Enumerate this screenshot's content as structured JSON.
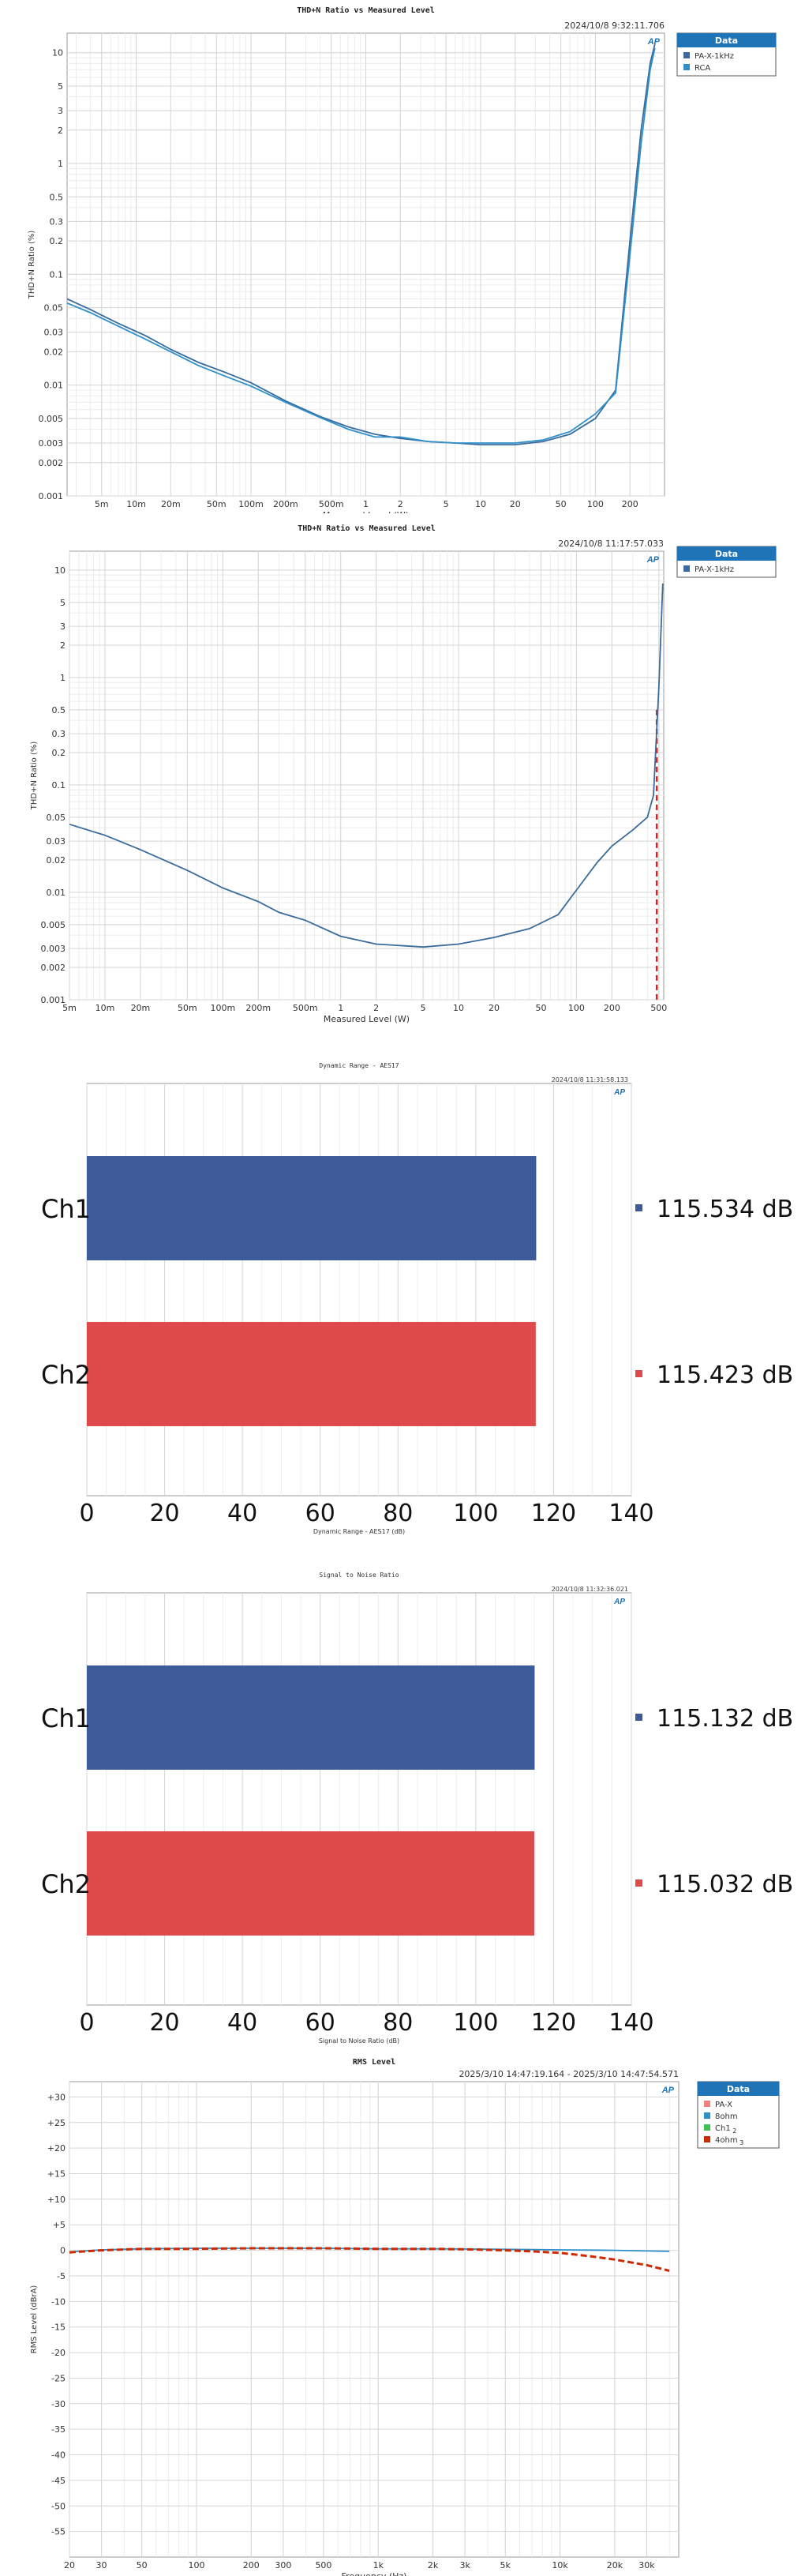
{
  "colors": {
    "series_dark_blue": "#3a6b9c",
    "series_light_blue": "#2e8fc9",
    "cursor_red": "#e02020",
    "bar_blue": "#3d5a99",
    "bar_red": "#de4a4a",
    "grid": "#e3e3e3",
    "legend_header": "#1f73b7",
    "rms_red": "#cc2a00",
    "rms_blue": "#2e8fc9",
    "rms_pink": "#f08080",
    "rms_green": "#3cc35a"
  },
  "chart_data": [
    {
      "type": "line",
      "title": "THD+N Ratio vs Measured Level",
      "timestamp": "2024/10/8 9:32:11.706",
      "xlabel": "Measured Level (W)",
      "ylabel": "THD+N Ratio (%)",
      "xscale": "log",
      "yscale": "log",
      "xlim": [
        0.0025,
        400
      ],
      "ylim": [
        0.001,
        15
      ],
      "x_ticks": [
        0.005,
        0.01,
        0.02,
        0.05,
        0.1,
        0.2,
        0.5,
        1,
        2,
        5,
        10,
        20,
        50,
        100,
        200
      ],
      "x_tick_labels": [
        "5m",
        "10m",
        "20m",
        "50m",
        "100m",
        "200m",
        "500m",
        "1",
        "2",
        "5",
        "10",
        "20",
        "50",
        "100",
        "200"
      ],
      "y_ticks": [
        0.001,
        0.002,
        0.003,
        0.005,
        0.01,
        0.02,
        0.03,
        0.05,
        0.1,
        0.2,
        0.3,
        0.5,
        1,
        2,
        3,
        5,
        10
      ],
      "y_tick_labels": [
        "0.001",
        "0.002",
        "0.003",
        "0.005",
        "0.01",
        "0.02",
        "0.03",
        "0.05",
        "0.1",
        "0.2",
        "0.3",
        "0.5",
        "1",
        "2",
        "3",
        "5",
        "10"
      ],
      "grid": true,
      "legend": {
        "title": "Data",
        "placement": "right",
        "entries": [
          "PA-X-1kHz",
          "RCA"
        ]
      },
      "series": [
        {
          "name": "PA-X-1kHz",
          "color": "#3a6b9c",
          "x": [
            0.0025,
            0.004,
            0.007,
            0.012,
            0.02,
            0.035,
            0.06,
            0.1,
            0.2,
            0.4,
            0.7,
            1.2,
            2,
            3.5,
            6,
            10,
            20,
            35,
            60,
            100,
            150,
            200,
            250,
            300,
            330
          ],
          "y": [
            0.06,
            0.048,
            0.036,
            0.028,
            0.021,
            0.016,
            0.013,
            0.0105,
            0.0072,
            0.0052,
            0.0042,
            0.0036,
            0.0033,
            0.0031,
            0.003,
            0.0029,
            0.0029,
            0.0031,
            0.0036,
            0.005,
            0.009,
            0.2,
            2,
            8,
            12
          ]
        },
        {
          "name": "RCA",
          "color": "#2e8fc9",
          "x": [
            0.0025,
            0.004,
            0.007,
            0.012,
            0.02,
            0.035,
            0.06,
            0.1,
            0.2,
            0.4,
            0.7,
            1.2,
            2,
            3.5,
            6,
            10,
            20,
            35,
            60,
            100,
            150,
            200,
            250,
            300,
            330
          ],
          "y": [
            0.055,
            0.045,
            0.034,
            0.026,
            0.02,
            0.015,
            0.012,
            0.0098,
            0.007,
            0.0051,
            0.004,
            0.0034,
            0.0034,
            0.0031,
            0.003,
            0.003,
            0.003,
            0.0032,
            0.0038,
            0.0055,
            0.0085,
            0.15,
            1.5,
            7,
            11
          ]
        }
      ]
    },
    {
      "type": "line",
      "title": "THD+N Ratio vs Measured Level",
      "timestamp": "2024/10/8 11:17:57.033",
      "xlabel": "Measured Level (W)",
      "ylabel": "THD+N Ratio (%)",
      "xscale": "log",
      "yscale": "log",
      "xlim": [
        0.005,
        550
      ],
      "ylim": [
        0.001,
        15
      ],
      "x_ticks": [
        0.005,
        0.01,
        0.02,
        0.05,
        0.1,
        0.2,
        0.5,
        1,
        2,
        5,
        10,
        20,
        50,
        100,
        200,
        500
      ],
      "x_tick_labels": [
        "5m",
        "10m",
        "20m",
        "50m",
        "100m",
        "200m",
        "500m",
        "1",
        "2",
        "5",
        "10",
        "20",
        "50",
        "100",
        "200",
        "500"
      ],
      "y_ticks": [
        0.001,
        0.002,
        0.003,
        0.005,
        0.01,
        0.02,
        0.03,
        0.05,
        0.1,
        0.2,
        0.3,
        0.5,
        1,
        2,
        3,
        5,
        10
      ],
      "y_tick_labels": [
        "0.001",
        "0.002",
        "0.003",
        "0.005",
        "0.01",
        "0.02",
        "0.03",
        "0.05",
        "0.1",
        "0.2",
        "0.3",
        "0.5",
        "1",
        "2",
        "3",
        "5",
        "10"
      ],
      "grid": true,
      "legend": {
        "title": "Data",
        "placement": "right",
        "entries": [
          "PA-X-1kHz"
        ]
      },
      "cursor_x": 480,
      "series": [
        {
          "name": "PA-X-1kHz",
          "color": "#3a6b9c",
          "x": [
            0.005,
            0.01,
            0.02,
            0.05,
            0.1,
            0.2,
            0.3,
            0.5,
            1,
            2,
            5,
            10,
            20,
            40,
            70,
            100,
            150,
            200,
            300,
            400,
            450,
            500,
            540
          ],
          "y": [
            0.043,
            0.034,
            0.025,
            0.016,
            0.011,
            0.0082,
            0.0065,
            0.0055,
            0.0039,
            0.0033,
            0.0031,
            0.0033,
            0.0038,
            0.0046,
            0.0062,
            0.0105,
            0.019,
            0.027,
            0.038,
            0.05,
            0.08,
            0.8,
            7.5
          ]
        }
      ]
    },
    {
      "type": "bar",
      "orientation": "horizontal",
      "title": "Dynamic Range - AES17",
      "timestamp": "2024/10/8 11:31:58.133",
      "xlabel": "Dynamic Range - AES17 (dB)",
      "xlim": [
        0,
        140
      ],
      "x_ticks": [
        0,
        20,
        40,
        60,
        80,
        100,
        120,
        140
      ],
      "categories": [
        "Ch1",
        "Ch2"
      ],
      "values": [
        115.534,
        115.423
      ],
      "value_labels": [
        "115.534 dB",
        "115.423 dB"
      ],
      "colors": [
        "#3d5a99",
        "#de4a4a"
      ],
      "grid": true
    },
    {
      "type": "bar",
      "orientation": "horizontal",
      "title": "Signal to Noise Ratio",
      "timestamp": "2024/10/8 11:32:36.021",
      "xlabel": "Signal to Noise Ratio (dB)",
      "xlim": [
        0,
        140
      ],
      "x_ticks": [
        0,
        20,
        40,
        60,
        80,
        100,
        120,
        140
      ],
      "categories": [
        "Ch1",
        "Ch2"
      ],
      "values": [
        115.132,
        115.032
      ],
      "value_labels": [
        "115.132 dB",
        "115.032 dB"
      ],
      "colors": [
        "#3d5a99",
        "#de4a4a"
      ],
      "grid": true
    },
    {
      "type": "line",
      "title": "RMS Level",
      "timestamp": "2025/3/10 14:47:19.164 -   2025/3/10 14:47:54.571",
      "xlabel": "Frequency (Hz)",
      "ylabel": "RMS Level (dBrA)",
      "xscale": "log",
      "xlim": [
        20,
        45000
      ],
      "ylim": [
        -60,
        33
      ],
      "x_ticks": [
        20,
        30,
        50,
        100,
        200,
        300,
        500,
        1000,
        2000,
        3000,
        5000,
        10000,
        20000,
        30000
      ],
      "x_tick_labels": [
        "20",
        "30",
        "50",
        "100",
        "200",
        "300",
        "500",
        "1k",
        "2k",
        "3k",
        "5k",
        "10k",
        "20k",
        "30k"
      ],
      "y_ticks": [
        30,
        25,
        20,
        15,
        10,
        5,
        0,
        -5,
        -10,
        -15,
        -20,
        -25,
        -30,
        -35,
        -40,
        -45,
        -50,
        -55
      ],
      "y_tick_labels": [
        "+30",
        "+25",
        "+20",
        "+15",
        "+10",
        "+5",
        "0",
        "-5",
        "-10",
        "-15",
        "-20",
        "-25",
        "-30",
        "-35",
        "-40",
        "-45",
        "-50",
        "-55"
      ],
      "grid": true,
      "legend": {
        "title": "Data",
        "placement": "right",
        "entries": [
          "PA-X",
          "8ohm",
          "Ch1",
          "4ohm"
        ]
      },
      "legend_subscripts": [
        "",
        "",
        "2",
        "3"
      ],
      "series": [
        {
          "name": "8ohm",
          "color": "#2e8fc9",
          "dashed": false,
          "x": [
            20,
            30,
            50,
            100,
            200,
            500,
            1000,
            2000,
            5000,
            10000,
            20000,
            40000
          ],
          "y": [
            -0.3,
            0.1,
            0.3,
            0.4,
            0.4,
            0.4,
            0.3,
            0.3,
            0.2,
            0.1,
            0,
            -0.2
          ]
        },
        {
          "name": "4ohm",
          "color": "#cc2a00",
          "dashed": true,
          "x": [
            20,
            30,
            50,
            100,
            200,
            500,
            1000,
            2000,
            3000,
            5000,
            7000,
            10000,
            15000,
            20000,
            30000,
            40000
          ],
          "y": [
            -0.4,
            0,
            0.3,
            0.3,
            0.4,
            0.4,
            0.3,
            0.3,
            0.2,
            0,
            -0.2,
            -0.5,
            -1.2,
            -1.8,
            -2.9,
            -4
          ]
        }
      ]
    }
  ]
}
